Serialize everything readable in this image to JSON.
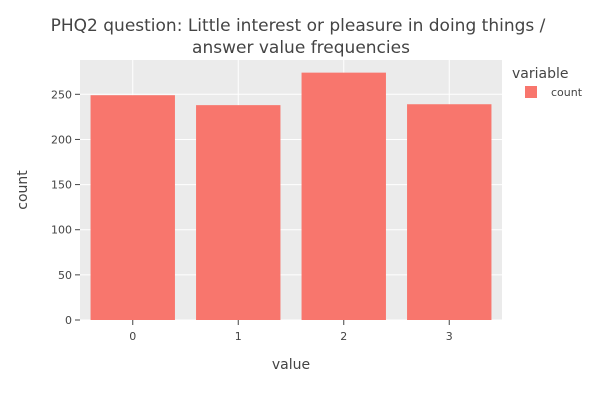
{
  "chart_data": {
    "type": "bar",
    "title_lines": [
      "PHQ2 question: Little interest or pleasure in doing things /",
      "answer value frequencies"
    ],
    "xlabel": "value",
    "ylabel": "count",
    "categories": [
      "0",
      "1",
      "2",
      "3"
    ],
    "series": [
      {
        "name": "count",
        "values": [
          249,
          238,
          274,
          239
        ],
        "color": "#F8766D"
      }
    ],
    "yticks": [
      0,
      50,
      100,
      150,
      200,
      250
    ],
    "ylim": [
      0,
      288
    ],
    "grid": true,
    "legend": {
      "title": "variable",
      "position": "right"
    },
    "colors": {
      "plot_bg": "#EBEBEB",
      "grid": "#FFFFFF",
      "text": "#444444"
    }
  }
}
